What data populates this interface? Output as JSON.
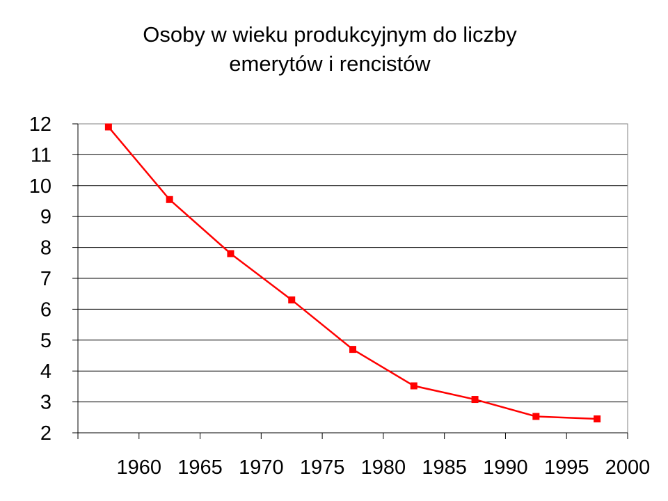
{
  "chart_data": {
    "type": "line",
    "title_lines": [
      "Osoby w wieku produkcyjnym do liczby",
      "emerytów i rencistów"
    ],
    "xlabel": "",
    "ylabel": "",
    "categories": [
      "1960",
      "1965",
      "1970",
      "1975",
      "1980",
      "1985",
      "1990",
      "1995",
      "2000"
    ],
    "series": [
      {
        "values": [
          11.9,
          9.55,
          7.8,
          6.3,
          4.7,
          3.52,
          3.08,
          2.53,
          2.45
        ]
      }
    ],
    "ylim": [
      2,
      12
    ],
    "yticks": [
      "2",
      "3",
      "4",
      "5",
      "6",
      "7",
      "8",
      "9",
      "10",
      "11",
      "12"
    ],
    "grid": true,
    "legend": "none",
    "colors": {
      "line": "#ff0000",
      "marker": "#ff0000",
      "grid": "#000000",
      "axis": "#000000",
      "plot_border": "#808080"
    }
  }
}
